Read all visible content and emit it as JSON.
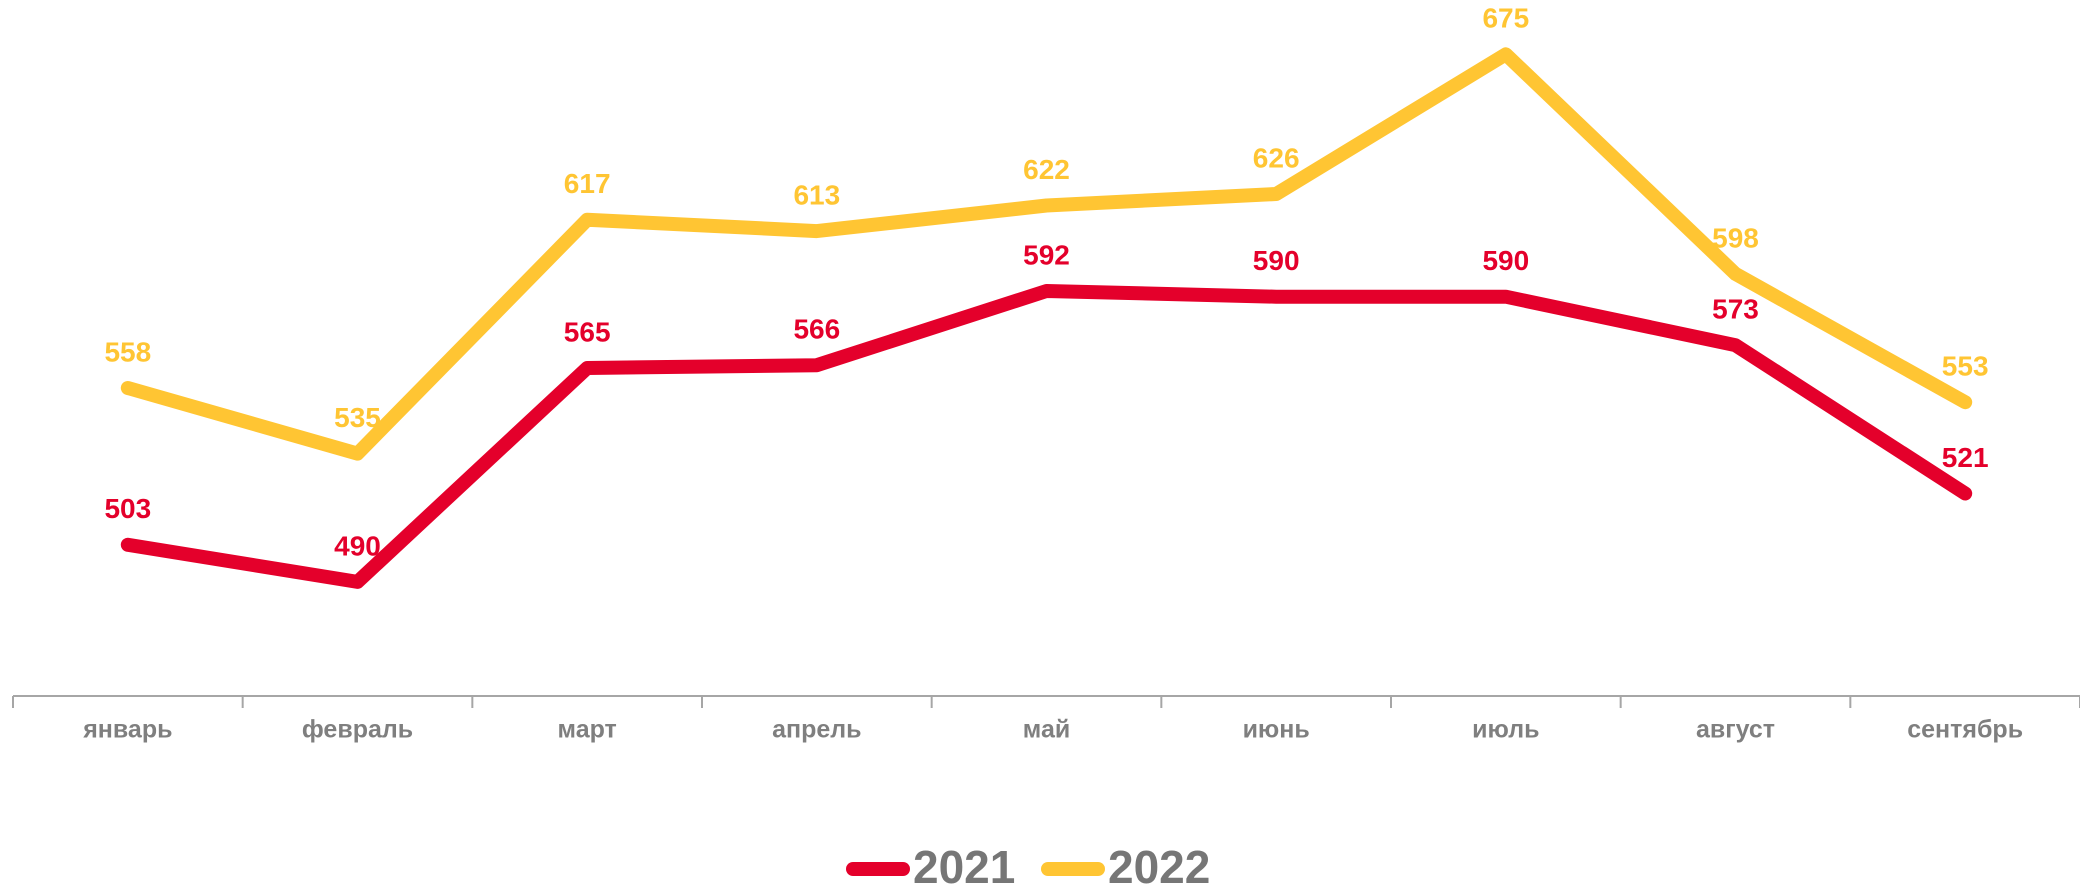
{
  "chart_data": {
    "type": "line",
    "categories": [
      "январь",
      "февраль",
      "март",
      "апрель",
      "май",
      "июнь",
      "июль",
      "август",
      "сентябрь"
    ],
    "series": [
      {
        "name": "2021",
        "color": "#e4002b",
        "values": [
          503,
          490,
          565,
          566,
          592,
          590,
          590,
          573,
          521
        ]
      },
      {
        "name": "2022",
        "color": "#ffc533",
        "values": [
          558,
          535,
          617,
          613,
          622,
          626,
          675,
          598,
          553
        ]
      }
    ],
    "ylim": [
      450,
      700
    ],
    "legend": "bottom"
  }
}
